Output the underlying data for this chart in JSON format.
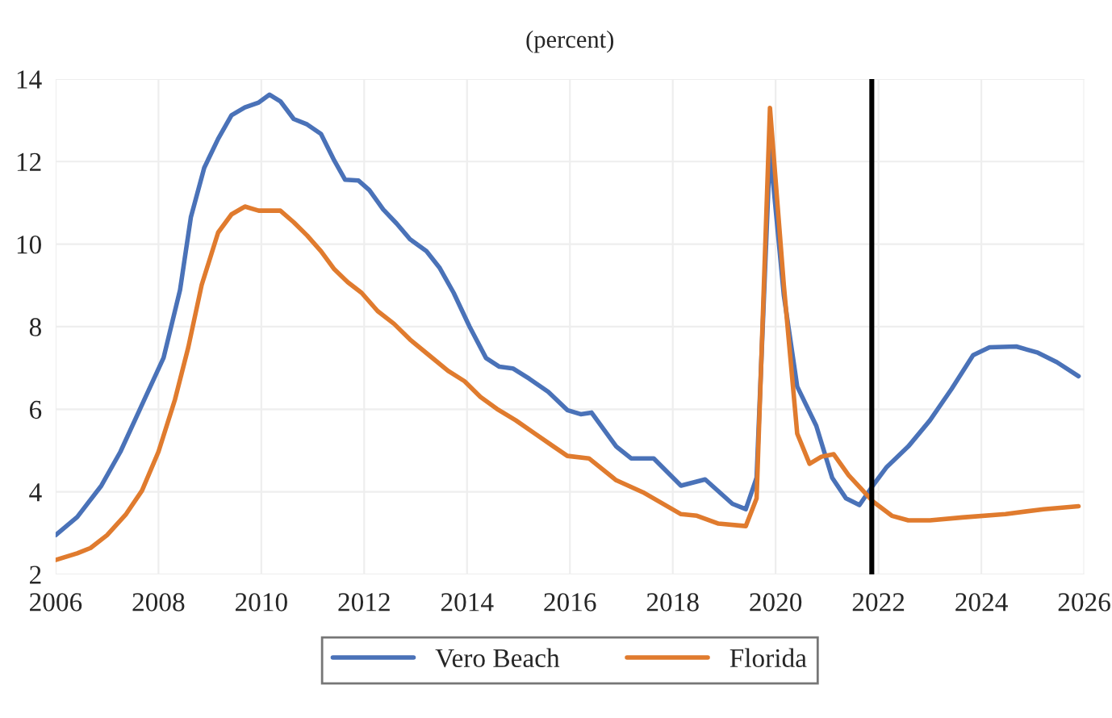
{
  "chart_data": {
    "type": "line",
    "title": "(percent)",
    "series": [
      {
        "name": "Vero Beach",
        "color": "#4a72b8",
        "x": [
          2006.0,
          2006.42,
          2006.89,
          2007.26,
          2007.68,
          2008.1,
          2008.42,
          2008.63,
          2008.89,
          2009.16,
          2009.42,
          2009.68,
          2009.95,
          2010.16,
          2010.37,
          2010.63,
          2010.89,
          2011.16,
          2011.42,
          2011.63,
          2011.89,
          2012.1,
          2012.37,
          2012.63,
          2012.89,
          2013.21,
          2013.47,
          2013.74,
          2014.05,
          2014.37,
          2014.63,
          2014.89,
          2015.21,
          2015.58,
          2015.95,
          2016.21,
          2016.42,
          2016.9,
          2017.19,
          2017.63,
          2018.16,
          2018.63,
          2019.16,
          2019.42,
          2019.63,
          2019.89,
          2020.16,
          2020.42,
          2020.79,
          2021.1,
          2021.37,
          2021.63,
          2021.89,
          2022.16,
          2022.58,
          2023.0,
          2023.42,
          2023.84,
          2024.16,
          2024.68,
          2025.1,
          2025.47,
          2025.89
        ],
        "values": [
          2.95,
          3.39,
          4.15,
          4.97,
          6.11,
          7.25,
          8.89,
          10.65,
          11.85,
          12.55,
          13.12,
          13.31,
          13.43,
          13.62,
          13.46,
          13.03,
          12.9,
          12.67,
          12.02,
          11.56,
          11.54,
          11.31,
          10.84,
          10.5,
          10.12,
          9.83,
          9.42,
          8.82,
          8.0,
          7.24,
          7.03,
          6.99,
          6.74,
          6.42,
          5.98,
          5.88,
          5.92,
          5.1,
          4.81,
          4.81,
          4.15,
          4.3,
          3.71,
          3.58,
          4.34,
          12.3,
          8.76,
          6.55,
          5.6,
          4.34,
          3.84,
          3.68,
          4.15,
          4.6,
          5.1,
          5.73,
          6.49,
          7.31,
          7.5,
          7.52,
          7.37,
          7.14,
          6.8
        ]
      },
      {
        "name": "Florida",
        "color": "#e07b2e",
        "x": [
          2006.0,
          2006.42,
          2006.68,
          2007.0,
          2007.37,
          2007.68,
          2008.0,
          2008.32,
          2008.58,
          2008.84,
          2009.16,
          2009.42,
          2009.68,
          2009.95,
          2010.37,
          2010.63,
          2010.89,
          2011.16,
          2011.42,
          2011.68,
          2011.95,
          2012.26,
          2012.58,
          2012.89,
          2013.26,
          2013.63,
          2013.95,
          2014.26,
          2014.58,
          2014.95,
          2015.32,
          2015.68,
          2015.95,
          2016.37,
          2016.9,
          2017.42,
          2018.16,
          2018.47,
          2018.89,
          2019.42,
          2019.63,
          2019.89,
          2020.16,
          2020.42,
          2020.66,
          2020.89,
          2021.13,
          2021.42,
          2021.89,
          2022.26,
          2022.58,
          2023.0,
          2023.63,
          2024.47,
          2025.21,
          2025.89
        ],
        "values": [
          2.35,
          2.51,
          2.64,
          2.95,
          3.46,
          4.03,
          4.97,
          6.23,
          7.5,
          9.01,
          10.28,
          10.72,
          10.91,
          10.81,
          10.81,
          10.53,
          10.21,
          9.83,
          9.39,
          9.08,
          8.82,
          8.38,
          8.07,
          7.69,
          7.31,
          6.93,
          6.68,
          6.3,
          6.01,
          5.73,
          5.41,
          5.1,
          4.87,
          4.81,
          4.28,
          3.99,
          3.46,
          3.42,
          3.23,
          3.17,
          3.84,
          13.3,
          9.0,
          5.41,
          4.68,
          4.85,
          4.91,
          4.4,
          3.77,
          3.42,
          3.31,
          3.31,
          3.38,
          3.46,
          3.58,
          3.65
        ]
      }
    ],
    "xlim": [
      2006,
      2026
    ],
    "xticks": [
      2006,
      2008,
      2010,
      2012,
      2014,
      2016,
      2018,
      2020,
      2022,
      2024,
      2026
    ],
    "ylim": [
      2,
      14
    ],
    "yticks": [
      2,
      4,
      6,
      8,
      10,
      12,
      14
    ],
    "ref_lines": [
      {
        "axis": "x",
        "value": 2021.87,
        "color": "#000000",
        "line_style": "solid"
      }
    ],
    "grid": true,
    "legend": "bottom",
    "marker": "none",
    "line_style": "solid"
  }
}
